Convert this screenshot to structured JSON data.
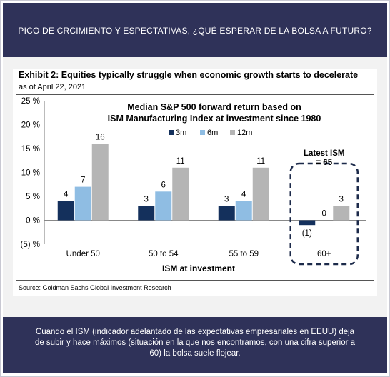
{
  "header": {
    "title": "PICO  DE CRCIMIENTO Y ESPECTATIVAS, ¿QUÉ ESPERAR DE LA BOLSA A FUTURO?"
  },
  "exhibit": {
    "title": "Exhibit 2: Equities typically struggle when economic growth starts to decelerate",
    "subtitle": "as of April 22, 2021",
    "source": "Source: Goldman Sachs Global Investment Research"
  },
  "chart_data": {
    "type": "bar",
    "title": "Median S&P 500 forward return based on ISM Manufacturing Index at investment since 1980",
    "title_lines": [
      "Median S&P 500 forward return based on",
      "ISM Manufacturing Index at investment since 1980"
    ],
    "xlabel": "ISM at investment",
    "ylabel": "",
    "categories": [
      "Under 50",
      "50 to 54",
      "55 to 59",
      "60+"
    ],
    "series": [
      {
        "name": "3m",
        "values": [
          4,
          3,
          3,
          -1
        ],
        "labels": [
          "4",
          "3",
          "3",
          "(1)"
        ],
        "color": "#14305c"
      },
      {
        "name": "6m",
        "values": [
          7,
          6,
          4,
          0
        ],
        "labels": [
          "7",
          "6",
          "4",
          "0"
        ],
        "color": "#8fbde3"
      },
      {
        "name": "12m",
        "values": [
          16,
          11,
          11,
          3
        ],
        "labels": [
          "16",
          "11",
          "11",
          "3"
        ],
        "color": "#b5b5b5"
      }
    ],
    "ylim": [
      -5,
      25
    ],
    "yticks": [
      25,
      20,
      15,
      10,
      5,
      0,
      -5
    ],
    "ytick_labels": [
      "25 %",
      "20 %",
      "15 %",
      "10 %",
      "5 %",
      "0 %",
      "(5) %"
    ],
    "legend_position": "top-center",
    "grid": false,
    "annotation": {
      "lines": [
        "Latest ISM",
        "= 65"
      ],
      "target_category": "60+",
      "style": "dashed box"
    }
  },
  "footer": {
    "caption": "Cuando el ISM (indicador adelantado de las expectativas empresariales en EEUU) deja de subir y hace máximos (situación en la que nos encontramos, con una cifra superior a 60) la bolsa suele flojear."
  }
}
